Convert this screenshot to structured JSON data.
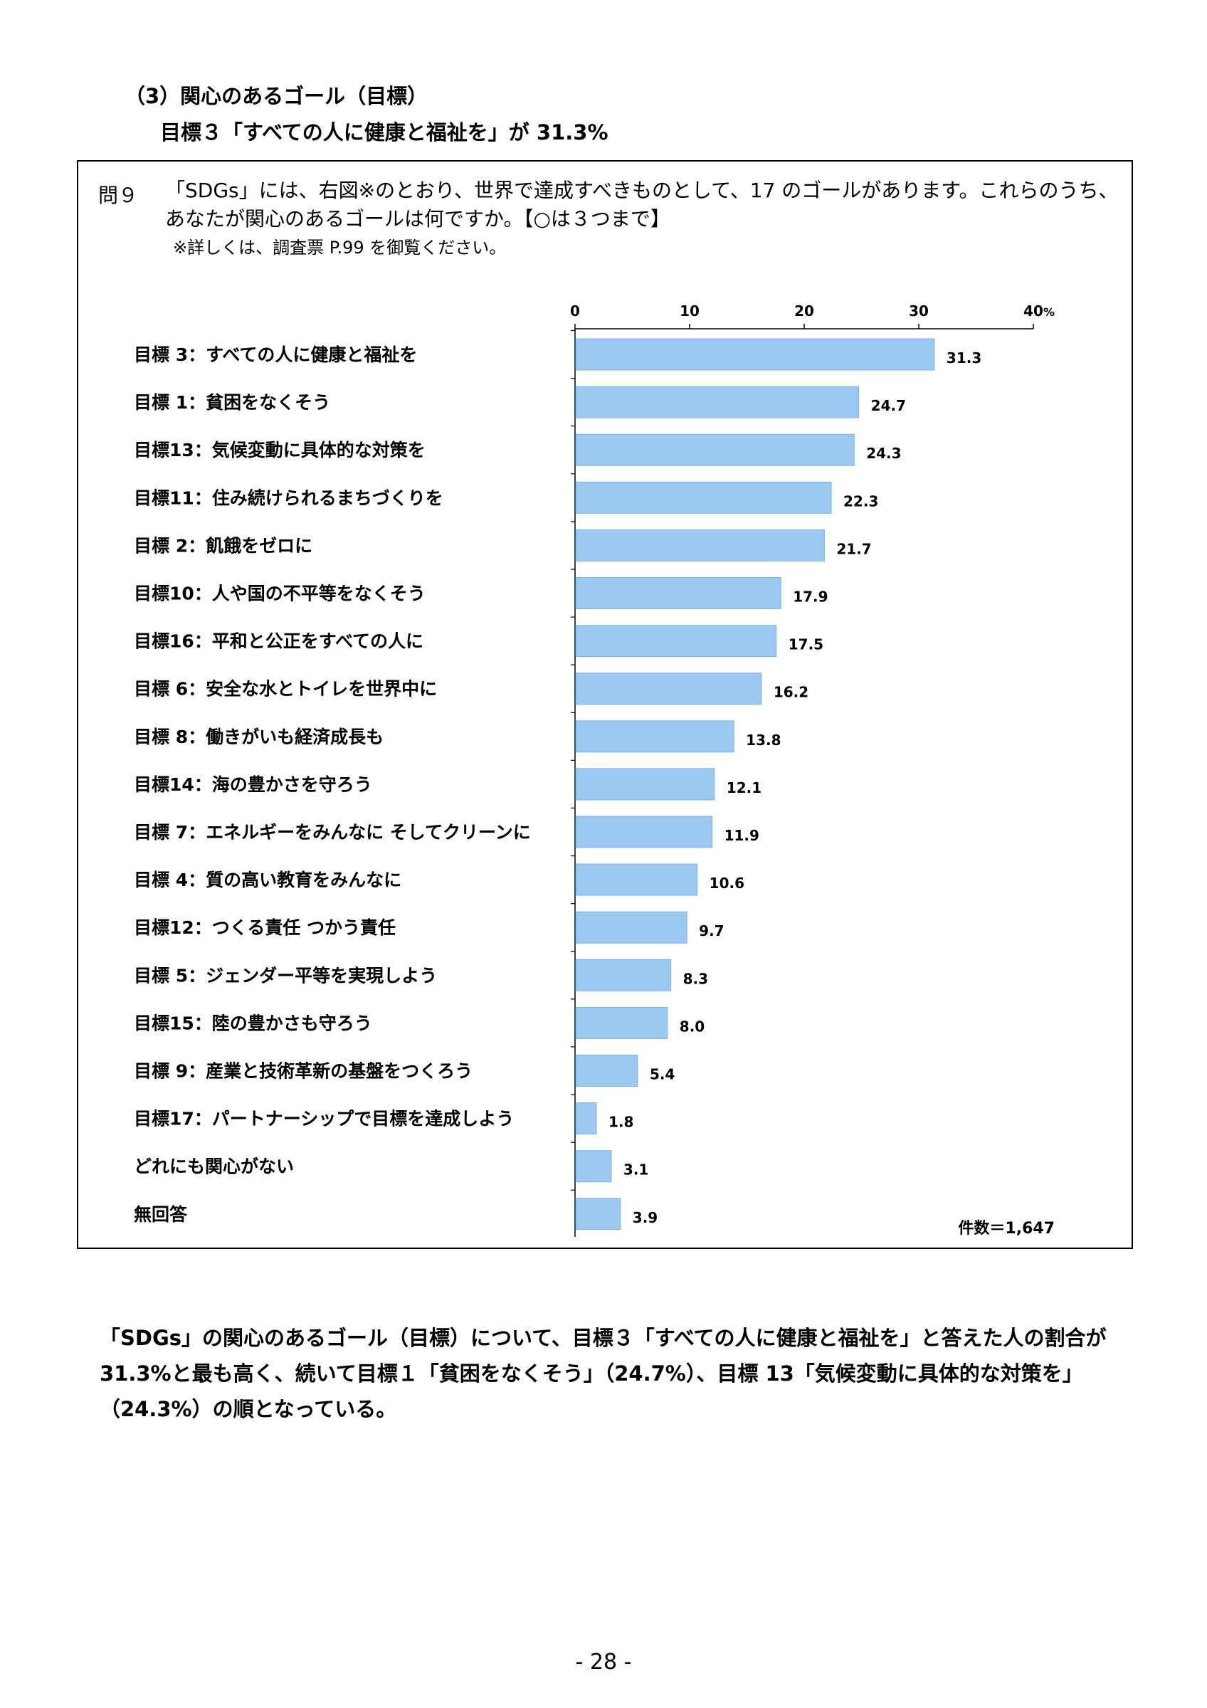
{
  "heading": {
    "section": "（3）関心のあるゴール（目標）",
    "subtitle": "目標３「すべての人に健康と福祉を」が 31.3%"
  },
  "question": {
    "number": "問９",
    "text": "「SDGs」には、右図※のとおり、世界で達成すべきものとして、17 のゴールがあります。これらのうち、あなたが関心のあるゴールは何ですか。【○は３つまで】",
    "note": "※詳しくは、調査票 P.99 を御覧ください。"
  },
  "chart_data": {
    "type": "bar",
    "orientation": "horizontal",
    "categories": [
      "目標 3：すべての人に健康と福祉を",
      "目標 1：貧困をなくそう",
      "目標13：気候変動に具体的な対策を",
      "目標11：住み続けられるまちづくりを",
      "目標 2：飢餓をゼロに",
      "目標10：人や国の不平等をなくそう",
      "目標16：平和と公正をすべての人に",
      "目標 6：安全な水とトイレを世界中に",
      "目標 8：働きがいも経済成長も",
      "目標14：海の豊かさを守ろう",
      "目標 7：エネルギーをみんなに そしてクリーンに",
      "目標 4：質の高い教育をみんなに",
      "目標12：つくる責任 つかう責任",
      "目標 5：ジェンダー平等を実現しよう",
      "目標15：陸の豊かさも守ろう",
      "目標 9：産業と技術革新の基盤をつくろう",
      "目標17：パートナーシップで目標を達成しよう",
      "どれにも関心がない",
      "無回答"
    ],
    "values": [
      31.3,
      24.7,
      24.3,
      22.3,
      21.7,
      17.9,
      17.5,
      16.2,
      13.8,
      12.1,
      11.9,
      10.6,
      9.7,
      8.3,
      8.0,
      5.4,
      1.8,
      3.1,
      3.9
    ],
    "value_labels": [
      "31.3",
      "24.7",
      "24.3",
      "22.3",
      "21.7",
      "17.9",
      "17.5",
      "16.2",
      "13.8",
      "12.1",
      "11.9",
      "10.6",
      "9.7",
      "8.3",
      "8.0",
      "5.4",
      "1.8",
      "3.1",
      "3.9"
    ],
    "xlim": [
      0,
      40
    ],
    "xticks": [
      0,
      10,
      20,
      30,
      40
    ],
    "xtick_labels": [
      "0",
      "10",
      "20",
      "30",
      "40"
    ],
    "unit": "%",
    "bar_color": "#9cc9f2",
    "bar_edge_color": "#7fb2e0",
    "grid": false,
    "sample_size": "件数＝1,647"
  },
  "summary": "「SDGs」の関心のあるゴール（目標）について、目標３「すべての人に健康と福祉を」と答えた人の割合が 31.3%と最も高く、続いて目標１「貧困をなくそう」（24.7%）、目標 13「気候変動に具体的な対策を」（24.3%）の順となっている。",
  "page_number": "- 28 -"
}
